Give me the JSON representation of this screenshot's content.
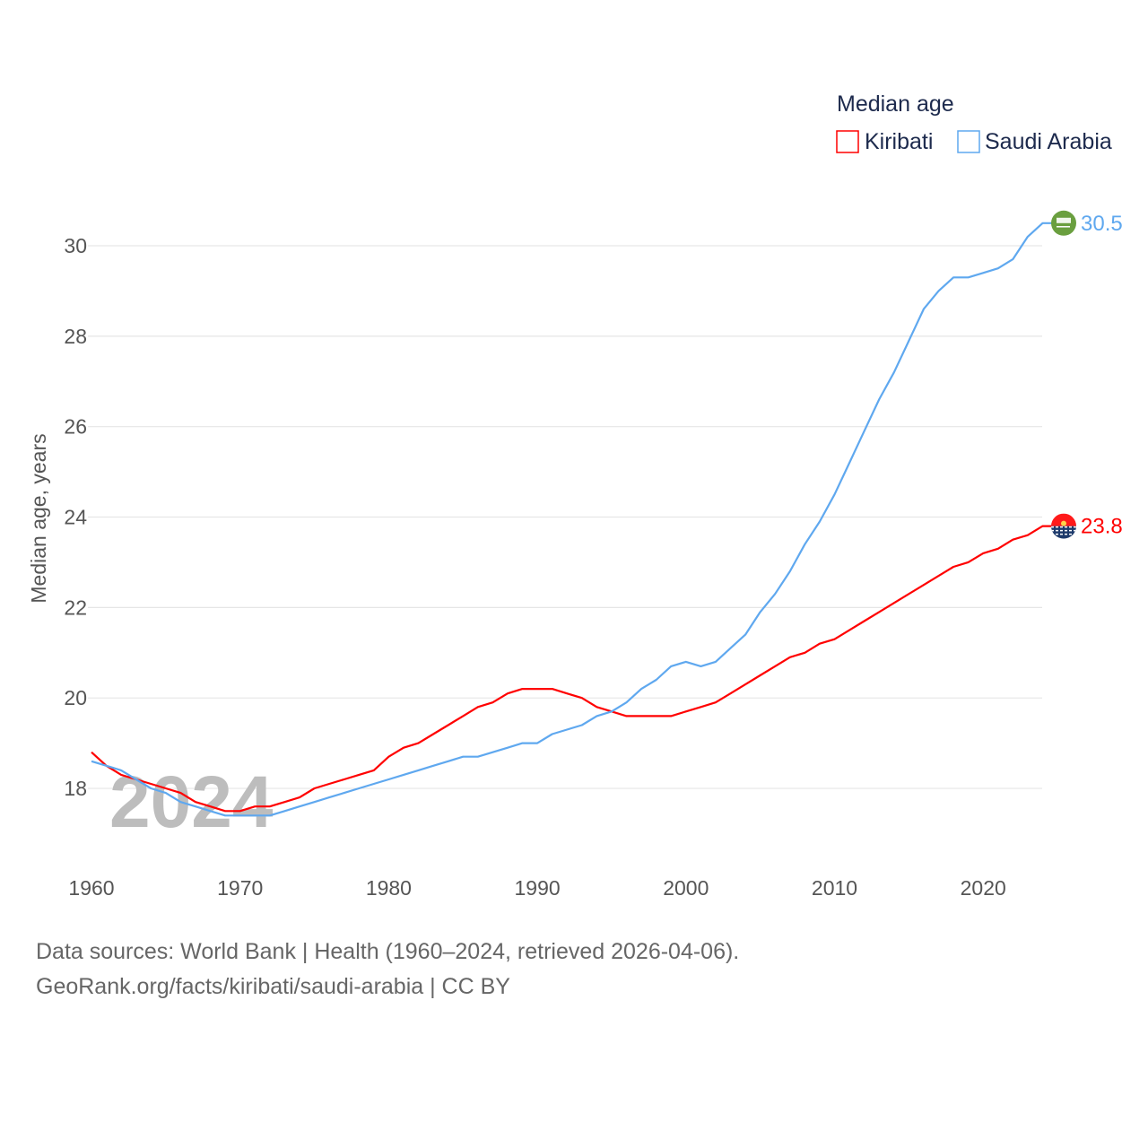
{
  "chart_data": {
    "type": "line",
    "title": "",
    "xlabel": "",
    "ylabel": "Median age, years",
    "xlim": [
      1960,
      2024
    ],
    "ylim": [
      16.6,
      30.9
    ],
    "yticks": [
      18,
      20,
      22,
      24,
      26,
      28,
      30
    ],
    "xticks": [
      1960,
      1970,
      1980,
      1990,
      2000,
      2010,
      2020
    ],
    "grid": true,
    "legend": {
      "title": "Median age",
      "placement": "top-right"
    },
    "watermark_year": "2024",
    "x": [
      1960,
      1961,
      1962,
      1963,
      1964,
      1965,
      1966,
      1967,
      1968,
      1969,
      1970,
      1971,
      1972,
      1973,
      1974,
      1975,
      1976,
      1977,
      1978,
      1979,
      1980,
      1981,
      1982,
      1983,
      1984,
      1985,
      1986,
      1987,
      1988,
      1989,
      1990,
      1991,
      1992,
      1993,
      1994,
      1995,
      1996,
      1997,
      1998,
      1999,
      2000,
      2001,
      2002,
      2003,
      2004,
      2005,
      2006,
      2007,
      2008,
      2009,
      2010,
      2011,
      2012,
      2013,
      2014,
      2015,
      2016,
      2017,
      2018,
      2019,
      2020,
      2021,
      2022,
      2023,
      2024
    ],
    "series": [
      {
        "name": "Kiribati",
        "color": "#ff0000",
        "end_label": "23.8",
        "values": [
          18.8,
          18.5,
          18.3,
          18.2,
          18.1,
          18.0,
          17.9,
          17.7,
          17.6,
          17.5,
          17.5,
          17.6,
          17.6,
          17.7,
          17.8,
          18.0,
          18.1,
          18.2,
          18.3,
          18.4,
          18.7,
          18.9,
          19.0,
          19.2,
          19.4,
          19.6,
          19.8,
          19.9,
          20.1,
          20.2,
          20.2,
          20.2,
          20.1,
          20.0,
          19.8,
          19.7,
          19.6,
          19.6,
          19.6,
          19.6,
          19.7,
          19.8,
          19.9,
          20.1,
          20.3,
          20.5,
          20.7,
          20.9,
          21.0,
          21.2,
          21.3,
          21.5,
          21.7,
          21.9,
          22.1,
          22.3,
          22.5,
          22.7,
          22.9,
          23.0,
          23.2,
          23.3,
          23.5,
          23.6,
          23.8
        ]
      },
      {
        "name": "Saudi Arabia",
        "color": "#5fa8ef",
        "end_label": "30.5",
        "values": [
          18.6,
          18.5,
          18.4,
          18.2,
          18.0,
          17.9,
          17.7,
          17.6,
          17.5,
          17.4,
          17.4,
          17.4,
          17.4,
          17.5,
          17.6,
          17.7,
          17.8,
          17.9,
          18.0,
          18.1,
          18.2,
          18.3,
          18.4,
          18.5,
          18.6,
          18.7,
          18.7,
          18.8,
          18.9,
          19.0,
          19.0,
          19.2,
          19.3,
          19.4,
          19.6,
          19.7,
          19.9,
          20.2,
          20.4,
          20.7,
          20.8,
          20.7,
          20.8,
          21.1,
          21.4,
          21.9,
          22.3,
          22.8,
          23.4,
          23.9,
          24.5,
          25.2,
          25.9,
          26.6,
          27.2,
          27.9,
          28.6,
          29.0,
          29.3,
          29.3,
          29.4,
          29.5,
          29.7,
          30.2,
          30.5
        ]
      }
    ]
  },
  "footer": {
    "line1": "Data sources: World Bank | Health (1960–2024, retrieved 2026-04-06).",
    "line2": "GeoRank.org/facts/kiribati/saudi-arabia | CC BY"
  }
}
